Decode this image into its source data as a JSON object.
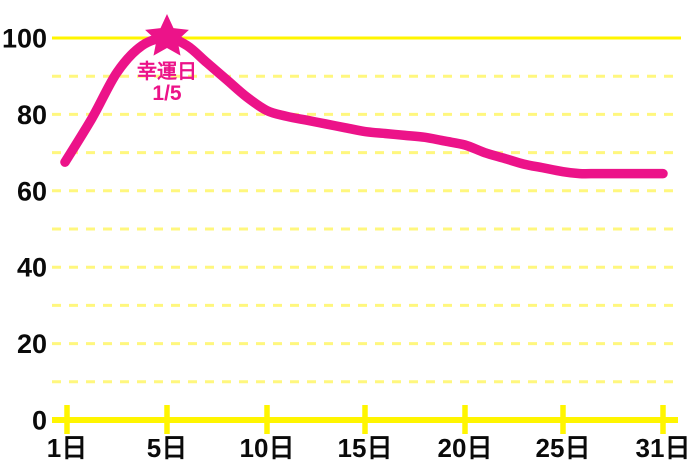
{
  "chart_data": {
    "type": "line",
    "title": "",
    "xlabel": "",
    "ylabel": "",
    "x_days": [
      1,
      2,
      3,
      4,
      5,
      6,
      7,
      8,
      9,
      10,
      11,
      12,
      13,
      14,
      15,
      16,
      17,
      18,
      19,
      20,
      21,
      22,
      23,
      24,
      25,
      26,
      27,
      28,
      29,
      30,
      31
    ],
    "values": [
      67.5,
      79,
      91,
      98,
      100,
      98,
      93.5,
      89,
      84.5,
      81,
      79.5,
      78.5,
      77.5,
      76.5,
      75.5,
      75,
      74.5,
      74,
      73,
      72,
      70,
      68.5,
      67,
      66,
      65,
      64.5,
      64.5,
      64.5,
      64.5,
      64.5,
      64.5
    ],
    "x_tick_days": [
      1,
      5,
      10,
      15,
      20,
      25,
      31
    ],
    "x_tick_labels": [
      "1日",
      "5日",
      "10日",
      "15日",
      "20日",
      "25日",
      "31日"
    ],
    "y_tick_values": [
      0,
      20,
      40,
      60,
      80,
      100
    ],
    "y_tick_labels": [
      "0",
      "20",
      "40",
      "60",
      "80",
      "100"
    ],
    "y_gridline_values": [
      10,
      20,
      30,
      40,
      50,
      60,
      70,
      80,
      90,
      100
    ],
    "ylim": [
      0,
      100
    ],
    "grid": "horizontal-dashed",
    "legend": null,
    "annotation": {
      "label": "幸運日",
      "date": "1/5",
      "day": 5,
      "value": 100,
      "marker": "star"
    },
    "colors": {
      "line": "#EC1389",
      "marker": "#EC1389",
      "annotation_text": "#EC1389",
      "axis": "#FFF500",
      "grid_dashed": "#FFF77E",
      "tick_text": "#0A0A0A",
      "background": "#FFFFFF"
    }
  }
}
